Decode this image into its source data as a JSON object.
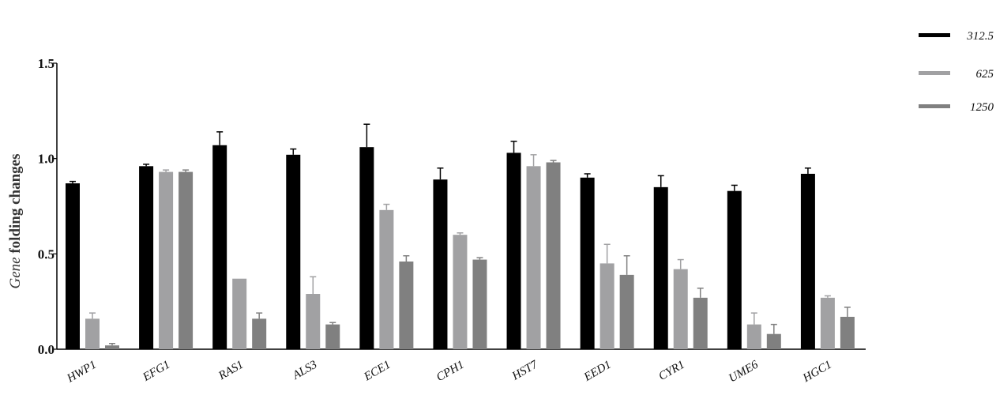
{
  "chart_data": {
    "type": "bar",
    "title": "",
    "ylabel_italic": "Gene",
    "ylabel_rest": " folding changes",
    "xlabel": "",
    "ylim": [
      0,
      1.5
    ],
    "yticks": [
      "0.0",
      "0.5",
      "1.0",
      "1.5"
    ],
    "ytick_values": [
      0,
      0.5,
      1.0,
      1.5
    ],
    "categories": [
      "HWP1",
      "EFG1",
      "RAS1",
      "ALS3",
      "ECE1",
      "CPH1",
      "HST7",
      "EED1",
      "CYR1",
      "UME6",
      "HGC1"
    ],
    "series": [
      {
        "name": "312.5",
        "color": "#000000",
        "values": [
          0.87,
          0.96,
          1.07,
          1.02,
          1.06,
          0.89,
          1.03,
          0.9,
          0.85,
          0.83,
          0.92
        ],
        "errors": [
          0.01,
          0.01,
          0.07,
          0.03,
          0.12,
          0.06,
          0.06,
          0.02,
          0.06,
          0.03,
          0.03
        ]
      },
      {
        "name": "625",
        "color": "#a1a1a3",
        "values": [
          0.16,
          0.93,
          0.37,
          0.29,
          0.73,
          0.6,
          0.96,
          0.45,
          0.42,
          0.13,
          0.27
        ],
        "errors": [
          0.03,
          0.01,
          0.0,
          0.09,
          0.03,
          0.01,
          0.06,
          0.1,
          0.05,
          0.06,
          0.01
        ]
      },
      {
        "name": "1250",
        "color": "#808080",
        "values": [
          0.02,
          0.93,
          0.16,
          0.13,
          0.46,
          0.47,
          0.98,
          0.39,
          0.27,
          0.08,
          0.17
        ],
        "errors": [
          0.01,
          0.01,
          0.03,
          0.01,
          0.03,
          0.01,
          0.01,
          0.1,
          0.05,
          0.05,
          0.05
        ]
      }
    ],
    "legend_position": "top-right",
    "grid": false
  }
}
